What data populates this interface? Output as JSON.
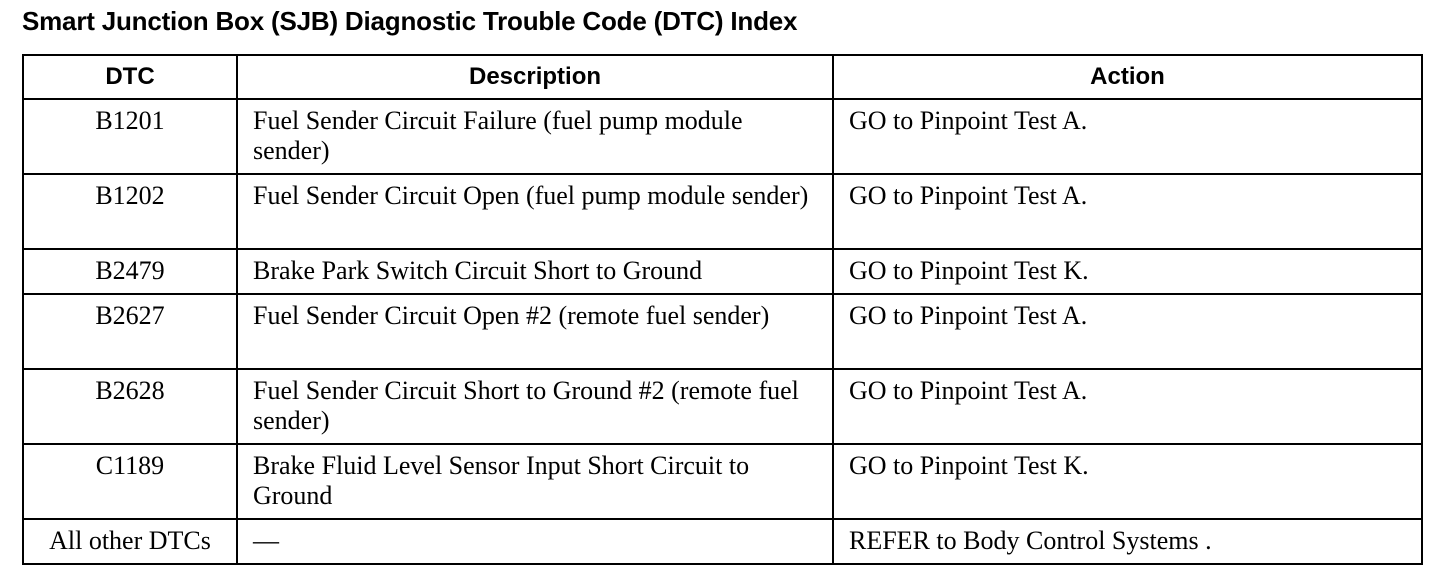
{
  "title": "Smart Junction Box (SJB) Diagnostic Trouble Code (DTC) Index",
  "table": {
    "headers": [
      "DTC",
      "Description",
      "Action"
    ],
    "rows": [
      {
        "dtc": "B1201",
        "description": "Fuel Sender Circuit Failure (fuel pump module sender)",
        "action": "GO to Pinpoint Test A."
      },
      {
        "dtc": "B1202",
        "description": "Fuel Sender Circuit Open (fuel pump module sender)",
        "action": "GO to Pinpoint Test A."
      },
      {
        "dtc": "B2479",
        "description": "Brake Park Switch Circuit Short to Ground",
        "action": "GO to Pinpoint Test K."
      },
      {
        "dtc": "B2627",
        "description": "Fuel Sender Circuit Open #2 (remote fuel sender)",
        "action": "GO to Pinpoint Test A."
      },
      {
        "dtc": "B2628",
        "description": "Fuel Sender Circuit Short to Ground #2 (remote fuel sender)",
        "action": "GO to Pinpoint Test A."
      },
      {
        "dtc": "C1189",
        "description": "Brake Fluid Level Sensor Input Short Circuit to Ground",
        "action": "GO to Pinpoint Test K."
      },
      {
        "dtc": "All other DTCs",
        "description": "—",
        "action": "REFER to Body Control Systems ."
      }
    ]
  }
}
